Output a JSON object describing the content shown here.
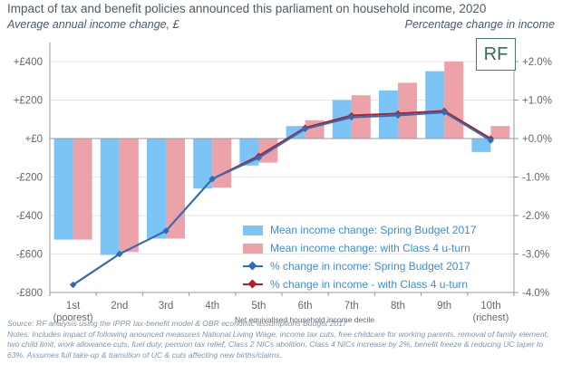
{
  "header": {
    "title": "Impact of tax and benefit policies announced this parliament on household income, 2020",
    "left_axis_title": "Average annual income change, £",
    "right_axis_title": "Percentage change in income"
  },
  "logo": {
    "text": "RF"
  },
  "footer": {
    "source": "Source: RF analysis using the IPPR tax-benefit model & OBR economic assumptions Budget 2017",
    "notes": "Notes: Includes impact of following anounced measures National Living Wage, income tax cuts, free childcare for working parents, removal of family element, two child limit, work allowance cuts, fuel duty, pension tax relief, Class 2 NICs abolition, Class 4 NICs increase by 2%, benefit freeze & reducing UC taper to 63%. Assumes full take-up & transition of UC & cuts affecting new births/claims."
  },
  "colors": {
    "bar_spring": "#7cc4f5",
    "bar_class4": "#eba2a8",
    "line_spring": "#2a6fbf",
    "line_class4": "#b3202a",
    "axis_text": "#666666",
    "legend_text": "#3b8ed6"
  },
  "chart_data": {
    "type": "bar",
    "categories": [
      "1st",
      "2nd",
      "3rd",
      "4th",
      "5th",
      "6th",
      "7th",
      "8th",
      "9th",
      "10th"
    ],
    "category_sublabels": [
      "(poorest)",
      "",
      "",
      "",
      "",
      "",
      "",
      "",
      "",
      "(richest)"
    ],
    "xlabel": "Net equivalised household income decile",
    "ylabel_left": "Average annual income change, £",
    "ylabel_right": "Percentage change in income",
    "ylim_left": [
      -800,
      500
    ],
    "yticks_left": [
      400,
      200,
      0,
      -200,
      -400,
      -600,
      -800
    ],
    "ytick_labels_left": [
      "+£400",
      "+£200",
      "+£0",
      "-£200",
      "-£400",
      "-£600",
      "-£800"
    ],
    "ylim_right": [
      -4.0,
      2.5
    ],
    "yticks_right": [
      2.0,
      1.0,
      0.0,
      -1.0,
      -2.0,
      -3.0,
      -4.0
    ],
    "ytick_labels_right": [
      "+2.0%",
      "+1.0%",
      "+0.0%",
      "-1.0%",
      "-2.0%",
      "-3.0%",
      "-4.0%"
    ],
    "grid": true,
    "legend_position": "bottom-right",
    "bar_series": [
      {
        "name": "Mean income change: Spring Budget 2017",
        "axis": "left",
        "values": [
          -525,
          -605,
          -520,
          -260,
          -140,
          65,
          200,
          250,
          350,
          -70
        ]
      },
      {
        "name": "Mean income change: with Class 4 u-turn",
        "axis": "left",
        "values": [
          -525,
          -590,
          -520,
          -255,
          -125,
          95,
          225,
          290,
          400,
          65
        ]
      }
    ],
    "line_series": [
      {
        "name": "% change in income: Spring Budget 2017",
        "axis": "right",
        "values": [
          -3.8,
          -3.0,
          -2.4,
          -1.05,
          -0.5,
          0.25,
          0.55,
          0.6,
          0.68,
          -0.05
        ]
      },
      {
        "name": "% change in income - with Class 4 u-turn",
        "axis": "right",
        "values": [
          -3.8,
          -3.0,
          -2.4,
          -1.05,
          -0.45,
          0.28,
          0.6,
          0.65,
          0.72,
          0.0
        ]
      }
    ]
  }
}
